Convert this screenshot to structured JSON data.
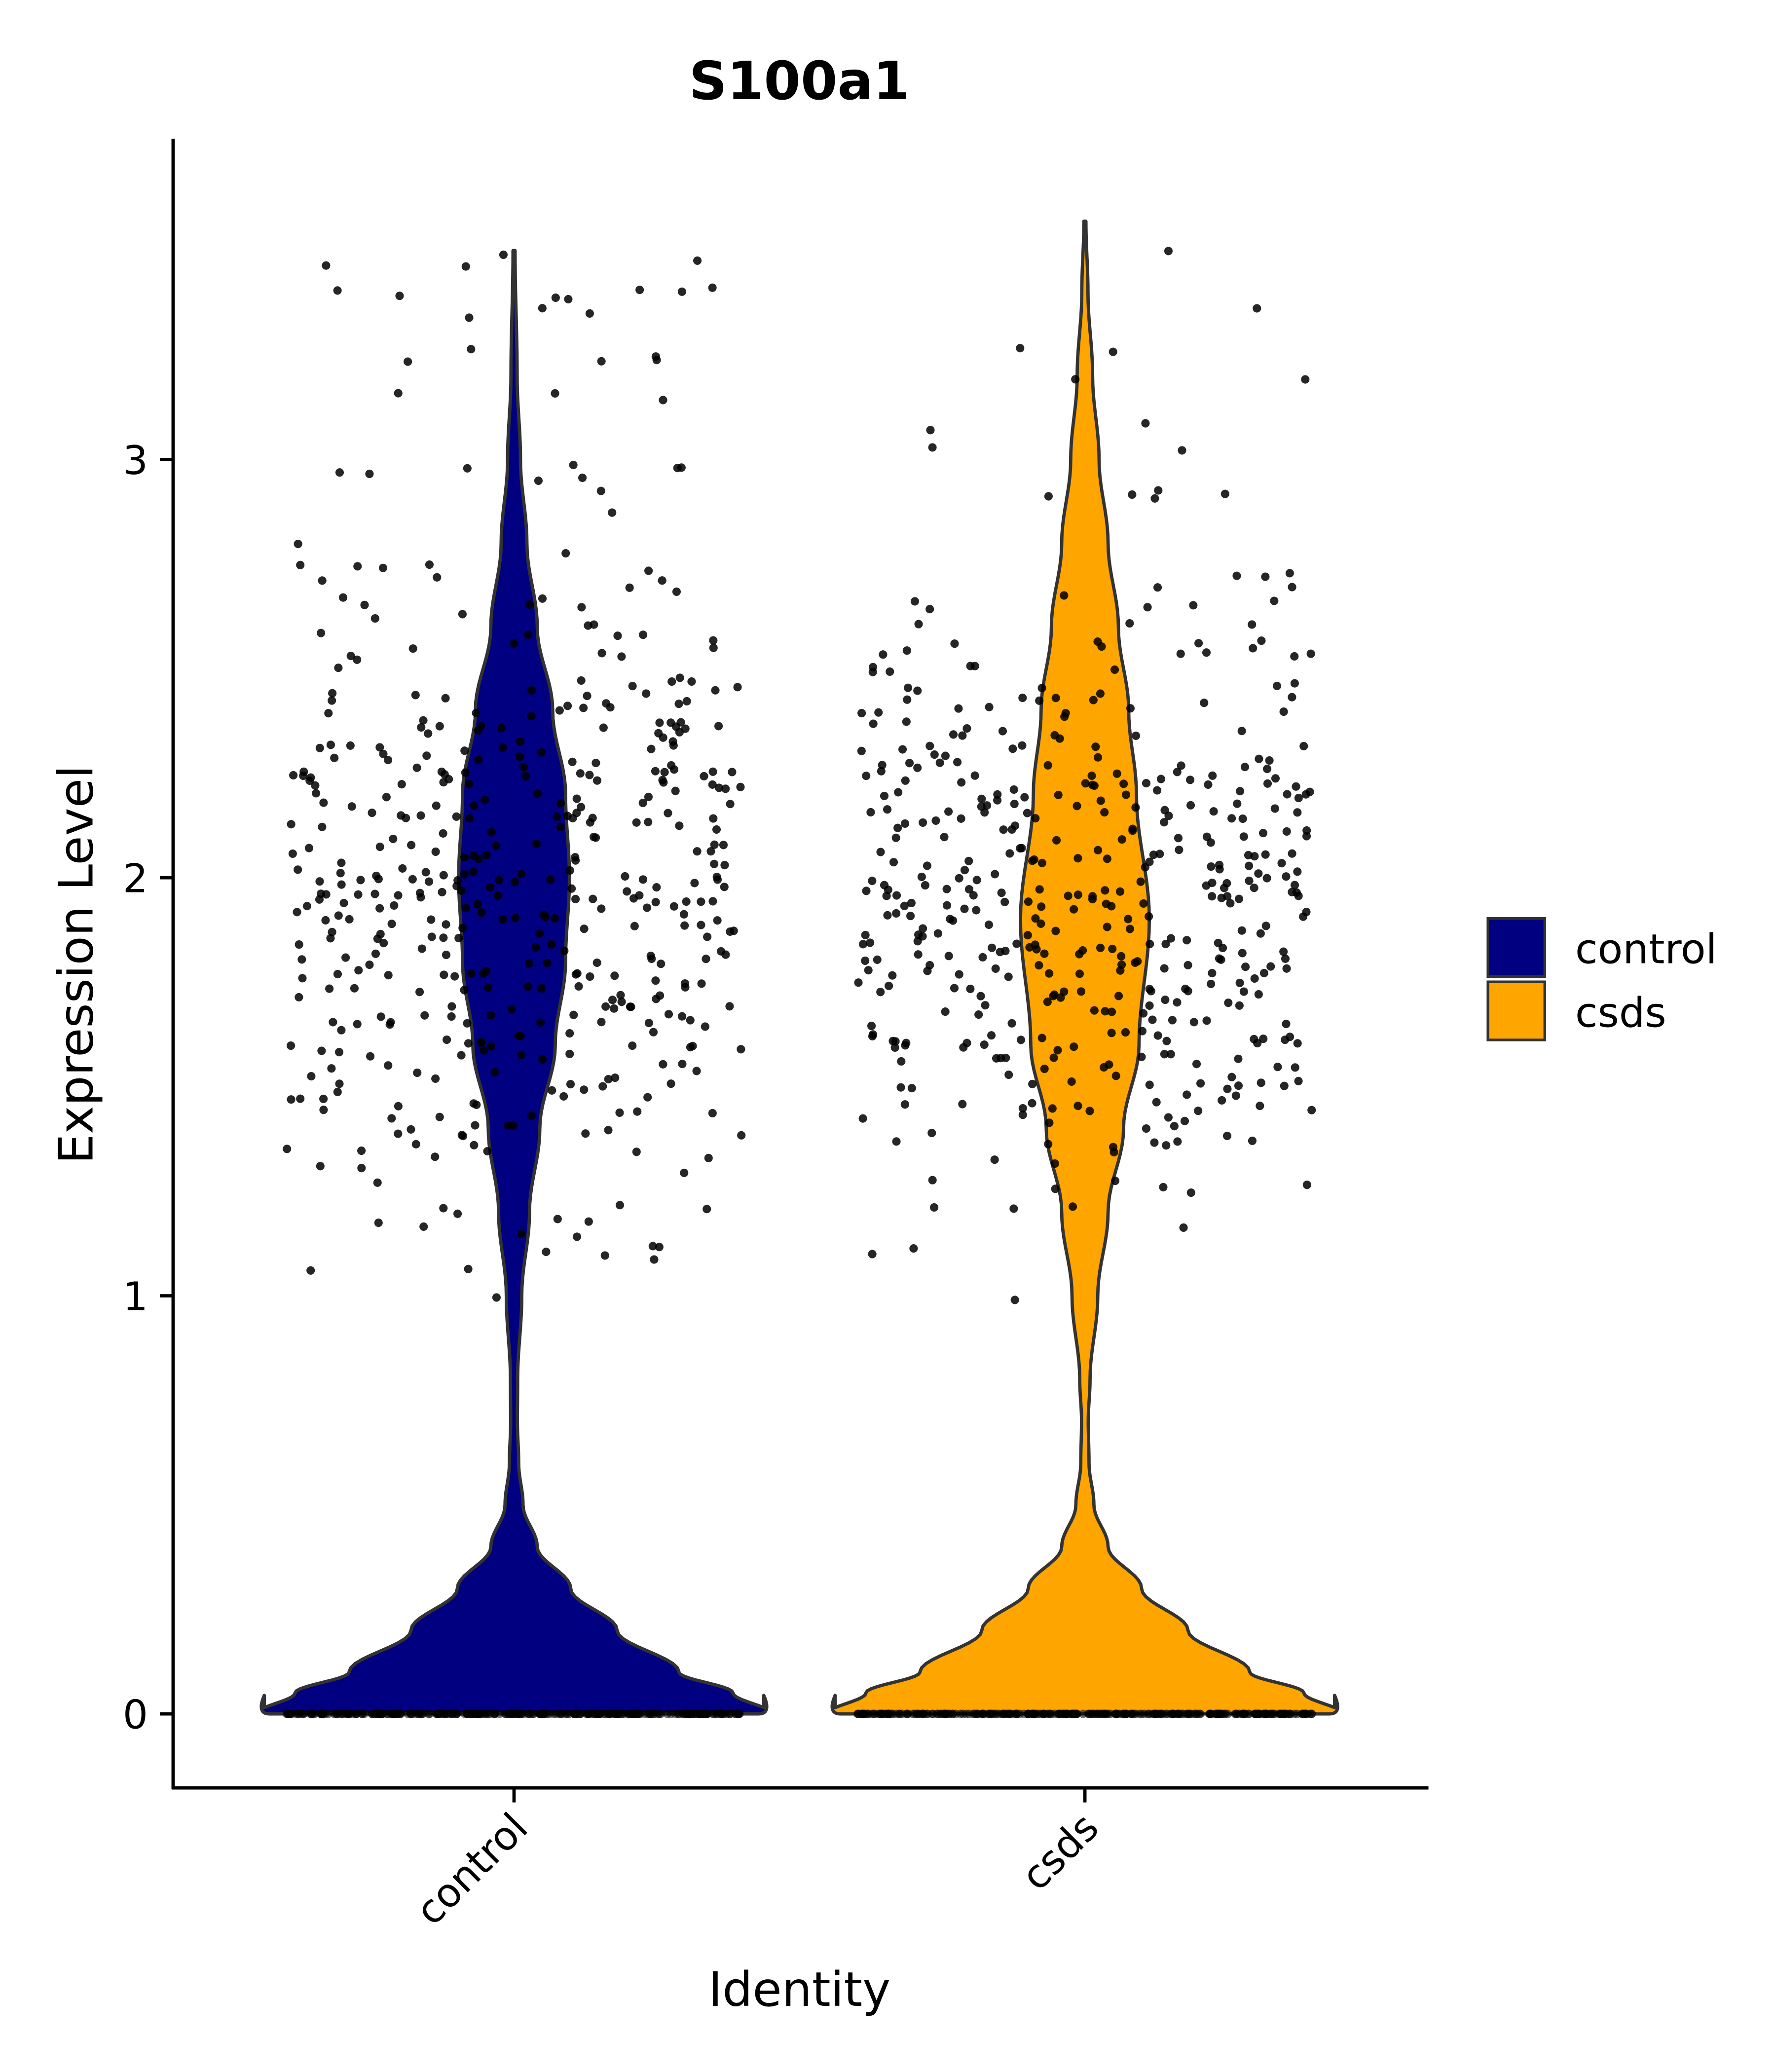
{
  "chart_data": {
    "type": "violin",
    "title": "S100a1",
    "xlabel": "Identity",
    "ylabel": "Expression Level",
    "categories": [
      "control",
      "csds"
    ],
    "ylim": [
      -0.18,
      3.75
    ],
    "yticks": [
      0,
      1,
      2,
      3
    ],
    "grid": false,
    "legend": {
      "placement": "right",
      "entries": [
        {
          "label": "control",
          "color": "#000080"
        },
        {
          "label": "csds",
          "color": "#FFA500"
        }
      ]
    },
    "series": [
      {
        "name": "control",
        "color": "#000080",
        "max_value": 3.5,
        "density_profile": [
          [
            0,
            1.0
          ],
          [
            0.05,
            0.85
          ],
          [
            0.1,
            0.64
          ],
          [
            0.2,
            0.4
          ],
          [
            0.3,
            0.22
          ],
          [
            0.4,
            0.09
          ],
          [
            0.5,
            0.035
          ],
          [
            0.6,
            0.018
          ],
          [
            0.7,
            0.013
          ],
          [
            0.8,
            0.014
          ],
          [
            1.0,
            0.03
          ],
          [
            1.2,
            0.06
          ],
          [
            1.4,
            0.1
          ],
          [
            1.6,
            0.16
          ],
          [
            1.8,
            0.2
          ],
          [
            2.0,
            0.215
          ],
          [
            2.2,
            0.2
          ],
          [
            2.4,
            0.15
          ],
          [
            2.6,
            0.09
          ],
          [
            2.8,
            0.05
          ],
          [
            3.0,
            0.025
          ],
          [
            3.2,
            0.012
          ],
          [
            3.5,
            0.004
          ]
        ]
      },
      {
        "name": "csds",
        "color": "#FFA500",
        "max_value": 3.57,
        "density_profile": [
          [
            0,
            1.0
          ],
          [
            0.05,
            0.85
          ],
          [
            0.1,
            0.64
          ],
          [
            0.2,
            0.4
          ],
          [
            0.3,
            0.22
          ],
          [
            0.4,
            0.09
          ],
          [
            0.5,
            0.035
          ],
          [
            0.6,
            0.016
          ],
          [
            0.7,
            0.013
          ],
          [
            0.8,
            0.02
          ],
          [
            1.0,
            0.05
          ],
          [
            1.2,
            0.09
          ],
          [
            1.4,
            0.15
          ],
          [
            1.6,
            0.21
          ],
          [
            1.9,
            0.25
          ],
          [
            2.2,
            0.2
          ],
          [
            2.4,
            0.17
          ],
          [
            2.6,
            0.13
          ],
          [
            2.8,
            0.09
          ],
          [
            3.0,
            0.055
          ],
          [
            3.2,
            0.03
          ],
          [
            3.4,
            0.012
          ],
          [
            3.57,
            0.004
          ]
        ]
      }
    ]
  }
}
